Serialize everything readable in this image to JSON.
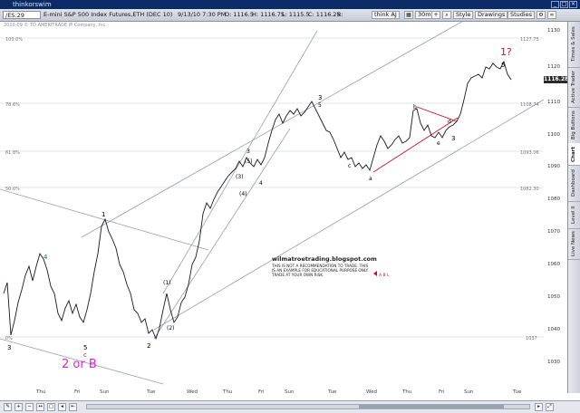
{
  "window": {
    "app_title": "thinkorswim"
  },
  "toolbar": {
    "symbol": "/ES:29",
    "description": "E-mini S&P 500 Index Futures,ETH (DEC 10)",
    "date": "9/13/10 7:30 PM",
    "open": "O: 1116.5",
    "high": "H: 1116.75",
    "low": "L: 1115.5",
    "close": "C: 1116.25",
    "range": "R:",
    "buttons": [
      "think AJ",
      "Style",
      "Drawings",
      "Studies"
    ],
    "timeframe": "30m",
    "last_price": "1116.28"
  },
  "chart": {
    "subtitle": "2010-09 © TD AMERITRADE IP Company, Inc.",
    "level_labels": [
      "100.0%",
      "78.6%",
      "61.8%",
      "50.0%",
      "0%"
    ],
    "level_values": [
      "1127.75",
      "1108.74",
      "1093.06",
      "1082.30",
      "1037"
    ],
    "wave_labels": {
      "w3_top": "3",
      "w5_top": "5",
      "w1q": "1?",
      "w1": "1",
      "w2": "2",
      "w4": "4",
      "w3_low": "3",
      "w5_low": "5",
      "a": "a",
      "b": "b",
      "c": "c",
      "d": "d",
      "e": "e",
      "w3_mid": "3",
      "w5_mid": "(5)",
      "w3p": "(3)",
      "w4p": "(4)",
      "w1p": "(1)",
      "w2p": "(2)",
      "w4_mid": "4",
      "c_red": "c",
      "two_or_b": "2 or B",
      "green4": "4",
      "w3_right": "3",
      "w3_right2": "3",
      "w_b_top": "b"
    },
    "annotation": {
      "site": "wilmatroetrading.blogspot.com",
      "line1": "THIS IS NOT A RECOMMENDATION TO TRADE. THIS",
      "line2": "IS AN EXAMPLE FOR EDUCATIONAL PURPOSE ONLY.",
      "line3": "TRADE AT YOUR OWN RISK.",
      "marker": "A B L"
    }
  },
  "price_scale": {
    "ticks": [
      "1130",
      "1120",
      "1110",
      "1100",
      "1090",
      "1080",
      "1070",
      "1060",
      "1050",
      "1040",
      "1030"
    ]
  },
  "time_axis": {
    "ticks": [
      "Thu",
      "Fri",
      "Sun",
      "Tue",
      "Wed",
      "Thu",
      "Fri",
      "Sun",
      "Tue",
      "Wed",
      "Thu",
      "Fri",
      "Sun",
      "Tue"
    ]
  },
  "sidebar": {
    "tabs": [
      "Times & Sales",
      "Active Trader",
      "Big Buttons",
      "Chart",
      "Dashboard",
      "Level II",
      "Live News"
    ]
  },
  "colors": {
    "background": "#ffffff",
    "price_line": "#1a1a1a",
    "channel": "#9aa0aa",
    "fib": "#c8cbd1",
    "red_wave": "#d0102a",
    "magenta": "#e020e0",
    "green": "#1a7a1a"
  }
}
